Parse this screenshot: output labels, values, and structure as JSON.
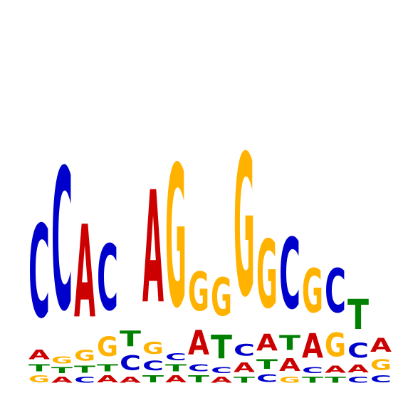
{
  "chart_data": {
    "type": "sequence-logo",
    "title": "",
    "xlabel": "",
    "ylabel": "",
    "colors": {
      "A": "#cc0000",
      "C": "#0000cc",
      "G": "#ffb300",
      "T": "#008000"
    },
    "positions": [
      {
        "index": 1,
        "stack": [
          [
            "G",
            0.14
          ],
          [
            "T",
            0.14
          ],
          [
            "A",
            0.2
          ],
          [
            "C",
            1.9
          ]
        ]
      },
      {
        "index": 2,
        "stack": [
          [
            "A",
            0.12
          ],
          [
            "T",
            0.12
          ],
          [
            "G",
            0.14
          ],
          [
            "C",
            2.9
          ]
        ]
      },
      {
        "index": 3,
        "stack": [
          [
            "C",
            0.12
          ],
          [
            "T",
            0.14
          ],
          [
            "G",
            0.22
          ],
          [
            "A",
            1.9
          ]
        ]
      },
      {
        "index": 4,
        "stack": [
          [
            "A",
            0.14
          ],
          [
            "T",
            0.14
          ],
          [
            "G",
            0.4
          ],
          [
            "C",
            1.35
          ]
        ]
      },
      {
        "index": 5,
        "stack": [
          [
            "A",
            0.12
          ],
          [
            "C",
            0.3
          ],
          [
            "T",
            0.32
          ]
        ]
      },
      {
        "index": 6,
        "stack": [
          [
            "T",
            0.14
          ],
          [
            "C",
            0.2
          ],
          [
            "G",
            0.25
          ],
          [
            "A",
            2.3
          ]
        ]
      },
      {
        "index": 7,
        "stack": [
          [
            "A",
            0.14
          ],
          [
            "T",
            0.14
          ],
          [
            "C",
            0.14
          ],
          [
            "G",
            2.9
          ]
        ]
      },
      {
        "index": 8,
        "stack": [
          [
            "T",
            0.14
          ],
          [
            "C",
            0.14
          ],
          [
            "A",
            0.5
          ],
          [
            "G",
            0.8
          ]
        ]
      },
      {
        "index": 9,
        "stack": [
          [
            "A",
            0.12
          ],
          [
            "C",
            0.12
          ],
          [
            "T",
            0.48
          ],
          [
            "G",
            0.78
          ]
        ]
      },
      {
        "index": 10,
        "stack": [
          [
            "T",
            0.12
          ],
          [
            "A",
            0.2
          ],
          [
            "C",
            0.24
          ],
          [
            "G",
            2.9
          ]
        ]
      },
      {
        "index": 11,
        "stack": [
          [
            "C",
            0.16
          ],
          [
            "T",
            0.2
          ],
          [
            "A",
            0.34
          ],
          [
            "G",
            1.4
          ]
        ]
      },
      {
        "index": 12,
        "stack": [
          [
            "G",
            0.12
          ],
          [
            "A",
            0.26
          ],
          [
            "T",
            0.3
          ],
          [
            "C",
            1.45
          ]
        ]
      },
      {
        "index": 13,
        "stack": [
          [
            "T",
            0.12
          ],
          [
            "C",
            0.12
          ],
          [
            "A",
            0.5
          ],
          [
            "G",
            0.9
          ]
        ]
      },
      {
        "index": 14,
        "stack": [
          [
            "T",
            0.12
          ],
          [
            "A",
            0.14
          ],
          [
            "G",
            0.48
          ],
          [
            "C",
            0.9
          ]
        ]
      },
      {
        "index": 15,
        "stack": [
          [
            "C",
            0.12
          ],
          [
            "A",
            0.16
          ],
          [
            "C",
            0.3
          ],
          [
            "T",
            0.62
          ]
        ]
      },
      {
        "index": 16,
        "stack": [
          [
            "C",
            0.14
          ],
          [
            "G",
            0.22
          ],
          [
            "A",
            0.28
          ]
        ]
      }
    ]
  }
}
